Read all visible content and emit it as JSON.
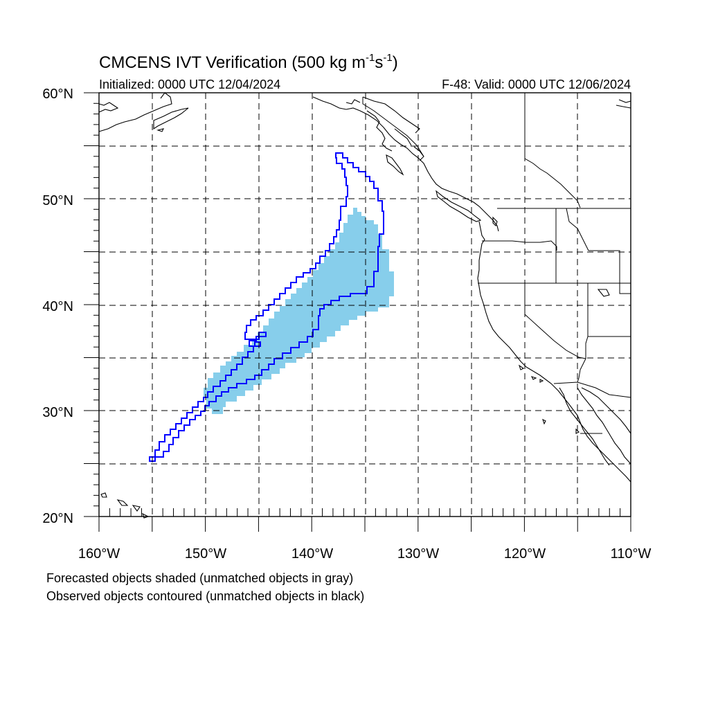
{
  "title": {
    "main": "CMCENS IVT Verification (500 kg m",
    "sup1": "-1",
    "mid": "s",
    "sup2": "-1",
    "end": ")"
  },
  "init_label": "Initialized: 0000 UTC 12/04/2024",
  "valid_label": "F-48: Valid: 0000 UTC 12/06/2024",
  "lat_labels": [
    "60°N",
    "50°N",
    "40°N",
    "30°N",
    "20°N"
  ],
  "lon_labels": [
    "160°W",
    "150°W",
    "140°W",
    "130°W",
    "120°W",
    "110°W"
  ],
  "caption_forecast": "Forecasted objects shaded (unmatched objects in gray)",
  "caption_observed": "Observed objects contoured (unmatched objects in black)",
  "colors": {
    "forecast_fill": "#87ceeb",
    "observed_contour": "#0000ff",
    "coastline": "#000000",
    "grid": "#000000"
  },
  "map": {
    "lon_range": [
      -160,
      -110
    ],
    "lat_range": [
      20,
      60
    ],
    "grid_lon_step": 5,
    "grid_lat_step": 5,
    "grid_style": "dashed"
  }
}
